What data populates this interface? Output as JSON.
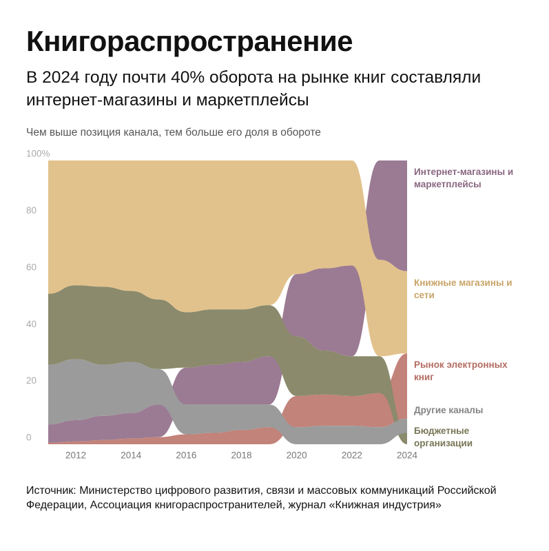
{
  "chart_data": {
    "type": "ranked_area",
    "title": "Книгораспространение",
    "subtitle": "В 2024 году почти 40% оборота на рынке книг составляли интернет-магазины и маркетплейсы",
    "note": "Чем выше позиция канала, тем больше его доля в обороте",
    "source": "Источник: Министерство цифрового развития, связи и массовых коммуникаций Российской Федерации, Ассоциация книгораспространителей, журнал «Книжная индустрия»",
    "x": [
      2011,
      2012,
      2013,
      2014,
      2015,
      2016,
      2017,
      2018,
      2019,
      2020,
      2021,
      2022,
      2023,
      2024
    ],
    "xlim": [
      2011,
      2024
    ],
    "xticks": [
      2012,
      2014,
      2016,
      2018,
      2020,
      2022,
      2024
    ],
    "ylim": [
      0,
      100
    ],
    "yticks": [
      0,
      20,
      40,
      60,
      80,
      {
        "value": 100,
        "label": "100%"
      }
    ],
    "grid": false,
    "series": [
      {
        "name": "Интернет-магазины и маркетплейсы",
        "color": "#9b7b93",
        "values": [
          6.5,
          7.5,
          8.5,
          9,
          11.5,
          13,
          14,
          15,
          17,
          22,
          29,
          32,
          35,
          39
        ]
      },
      {
        "name": "Книжные магазины и сети",
        "color": "#e2c28c",
        "values": [
          47,
          44,
          44.5,
          46,
          49,
          53.5,
          52.5,
          52.5,
          51,
          40,
          38,
          37,
          34,
          29
        ]
      },
      {
        "name": "Рынок электронных книг",
        "color": "#c2837a",
        "values": [
          0.5,
          1,
          1.5,
          2,
          2.5,
          3.5,
          4,
          5,
          6,
          11,
          11,
          10.5,
          12,
          23
        ]
      },
      {
        "name": "Бюджетные организации",
        "color": "#8b8a6c",
        "values": [
          25,
          26,
          27.5,
          25,
          24.5,
          19.5,
          19.5,
          18.5,
          18,
          21,
          15.5,
          14,
          13,
          4
        ]
      },
      {
        "name": "Другие каналы",
        "color": "#9b9b9b",
        "values": [
          21,
          21.5,
          18,
          18,
          12.5,
          10.5,
          10,
          9,
          8,
          6,
          6.5,
          6.5,
          6,
          5
        ]
      }
    ]
  }
}
